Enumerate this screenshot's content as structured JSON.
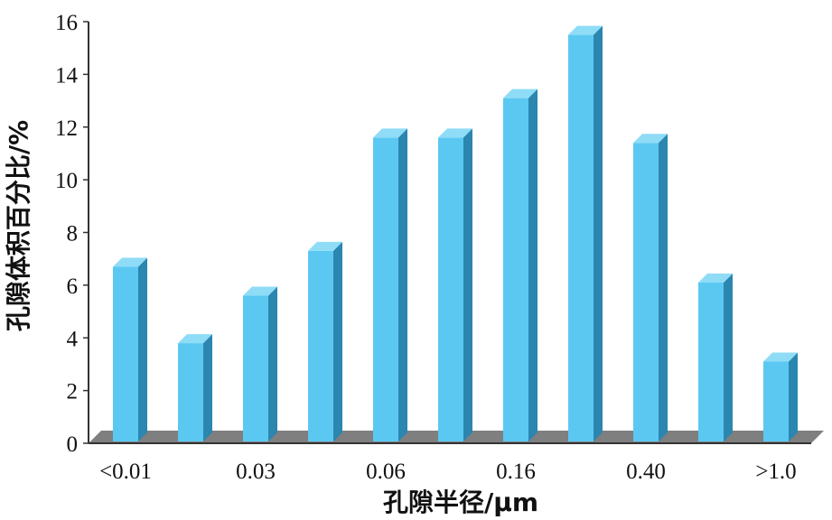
{
  "chart_data": {
    "type": "bar",
    "style": "3d",
    "categories": [
      "<0.01",
      "",
      "0.03",
      "",
      "0.06",
      "",
      "0.16",
      "",
      "0.40",
      "",
      ">1.0"
    ],
    "x_tick_labels": [
      "<0.01",
      "0.03",
      "0.06",
      "0.16",
      "0.40",
      ">1.0"
    ],
    "values": [
      6.7,
      3.8,
      5.6,
      7.3,
      11.6,
      11.6,
      13.1,
      15.5,
      11.4,
      6.1,
      3.1
    ],
    "xlabel": "孔隙半径/μm",
    "ylabel": "孔隙体积百分比/%",
    "ylim": [
      0,
      16
    ],
    "yticks": [
      "0",
      "2",
      "4",
      "6",
      "8",
      "10",
      "12",
      "14",
      "16"
    ],
    "grid": false,
    "legend": "none",
    "colors": {
      "bar_front": "#5BC8F2",
      "bar_side": "#2B86B0",
      "bar_top": "#8FDCF7",
      "floor": "#7F7F7F",
      "axis": "#333333"
    }
  }
}
